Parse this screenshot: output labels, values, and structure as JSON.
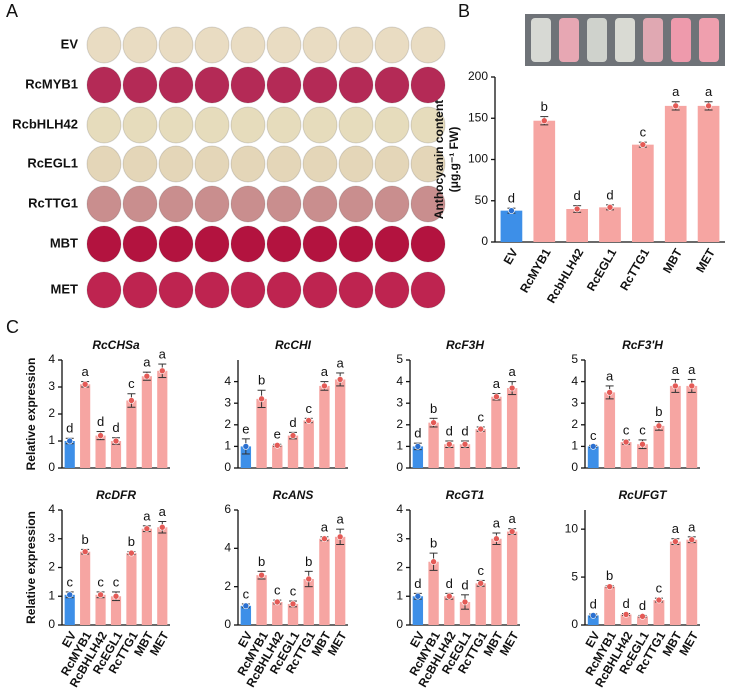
{
  "panel_labels": [
    "A",
    "B",
    "C"
  ],
  "petal_rows": [
    {
      "label": "EV",
      "color": "#e9dcc2"
    },
    {
      "label": "RcMYB1",
      "color": "#b42a56"
    },
    {
      "label": "RcbHLH42",
      "color": "#e6dcbc"
    },
    {
      "label": "RcEGL1",
      "color": "#e4d6b8"
    },
    {
      "label": "RcTTG1",
      "color": "#c98e8e"
    },
    {
      "label": "MBT",
      "color": "#b3133f"
    },
    {
      "label": "MET",
      "color": "#be2450"
    }
  ],
  "chart_data": [
    {
      "type": "bar",
      "y_label": [
        "Anthocyanin content",
        "(μg.g⁻¹ FW)"
      ],
      "categories": [
        "EV",
        "RcMYB1",
        "RcbHLH42",
        "RcEGL1",
        "RcTTG1",
        "MBT",
        "MET"
      ],
      "values": [
        38,
        147,
        40,
        42,
        118,
        165,
        165
      ],
      "errors": [
        3,
        5,
        4,
        3,
        3,
        5,
        5
      ],
      "letters": [
        "d",
        "b",
        "d",
        "d",
        "c",
        "a",
        "a"
      ],
      "colors": [
        "#3d8fe8",
        "#f6a5a2",
        "#f6a5a2",
        "#f6a5a2",
        "#f6a5a2",
        "#f6a5a2",
        "#f6a5a2"
      ],
      "ylim": [
        0,
        200
      ],
      "yticks": [
        0,
        50,
        100,
        150,
        200
      ]
    },
    {
      "type": "bar",
      "title": "RcCHSa",
      "y_label": [
        "Relative expression"
      ],
      "values": [
        1.0,
        3.1,
        1.2,
        1.0,
        2.5,
        3.4,
        3.6
      ],
      "errors": [
        0.1,
        0.1,
        0.15,
        0.12,
        0.25,
        0.15,
        0.25
      ],
      "letters": [
        "d",
        "a",
        "d",
        "d",
        "c",
        "a",
        "a"
      ],
      "colors": [
        "#3d8fe8",
        "#f6a5a2",
        "#f6a5a2",
        "#f6a5a2",
        "#f6a5a2",
        "#f6a5a2",
        "#f6a5a2"
      ],
      "ylim": [
        0,
        4
      ],
      "yticks": [
        0,
        1,
        2,
        3,
        4
      ]
    },
    {
      "type": "bar",
      "title": "RcCHI",
      "values": [
        1.0,
        3.2,
        1.05,
        1.5,
        2.2,
        3.8,
        4.1
      ],
      "errors": [
        0.35,
        0.4,
        0.05,
        0.15,
        0.1,
        0.2,
        0.3
      ],
      "letters": [
        "e",
        "b",
        "e",
        "d",
        "c",
        "a",
        "a"
      ],
      "colors": [
        "#3d8fe8",
        "#f6a5a2",
        "#f6a5a2",
        "#f6a5a2",
        "#f6a5a2",
        "#f6a5a2",
        "#f6a5a2"
      ],
      "ylim": [
        0,
        5
      ],
      "yticks": [
        0,
        1,
        2,
        3,
        4
      ]
    },
    {
      "type": "bar",
      "title": "RcF3H",
      "values": [
        1.0,
        2.1,
        1.1,
        1.1,
        1.8,
        3.3,
        3.7
      ],
      "errors": [
        0.15,
        0.2,
        0.15,
        0.15,
        0.1,
        0.15,
        0.3
      ],
      "letters": [
        "d",
        "b",
        "d",
        "d",
        "c",
        "a",
        "a"
      ],
      "colors": [
        "#3d8fe8",
        "#f6a5a2",
        "#f6a5a2",
        "#f6a5a2",
        "#f6a5a2",
        "#f6a5a2",
        "#f6a5a2"
      ],
      "ylim": [
        0,
        5
      ],
      "yticks": [
        0,
        1,
        2,
        3,
        4,
        5
      ]
    },
    {
      "type": "bar",
      "title": "RcF3'H",
      "values": [
        1.0,
        3.5,
        1.2,
        1.1,
        1.95,
        3.8,
        3.8
      ],
      "errors": [
        0.05,
        0.3,
        0.1,
        0.2,
        0.2,
        0.3,
        0.3
      ],
      "letters": [
        "c",
        "a",
        "c",
        "c",
        "b",
        "a",
        "a"
      ],
      "colors": [
        "#3d8fe8",
        "#f6a5a2",
        "#f6a5a2",
        "#f6a5a2",
        "#f6a5a2",
        "#f6a5a2",
        "#f6a5a2"
      ],
      "ylim": [
        0,
        5
      ],
      "yticks": [
        0,
        1,
        2,
        3,
        4,
        5
      ]
    },
    {
      "type": "bar",
      "title": "RcDFR",
      "y_label": [
        "Relative expression"
      ],
      "categories": [
        "EV",
        "RcMYB1",
        "RcBHLH42",
        "RcEGL1",
        "RcTTG1",
        "MBT",
        "MET"
      ],
      "values": [
        1.05,
        2.55,
        1.05,
        1.0,
        2.5,
        3.35,
        3.4
      ],
      "errors": [
        0.1,
        0.08,
        0.1,
        0.15,
        0.05,
        0.1,
        0.2
      ],
      "letters": [
        "c",
        "b",
        "c",
        "c",
        "b",
        "a",
        "a"
      ],
      "colors": [
        "#3d8fe8",
        "#f6a5a2",
        "#f6a5a2",
        "#f6a5a2",
        "#f6a5a2",
        "#f6a5a2",
        "#f6a5a2"
      ],
      "ylim": [
        0,
        4
      ],
      "yticks": [
        0,
        1,
        2,
        3,
        4
      ]
    },
    {
      "type": "bar",
      "title": "RcANS",
      "categories": [
        "EV",
        "RcMYB1",
        "RcBHLH42",
        "RcEGL1",
        "RcTTG1",
        "MBT",
        "MET"
      ],
      "values": [
        1.0,
        2.6,
        1.2,
        1.1,
        2.4,
        4.5,
        4.6
      ],
      "errors": [
        0.1,
        0.2,
        0.1,
        0.15,
        0.4,
        0.1,
        0.4
      ],
      "letters": [
        "c",
        "b",
        "c",
        "c",
        "b",
        "a",
        "a"
      ],
      "colors": [
        "#3d8fe8",
        "#f6a5a2",
        "#f6a5a2",
        "#f6a5a2",
        "#f6a5a2",
        "#f6a5a2",
        "#f6a5a2"
      ],
      "ylim": [
        0,
        6
      ],
      "yticks": [
        0,
        2,
        4,
        6
      ]
    },
    {
      "type": "bar",
      "title": "RcGT1",
      "categories": [
        "EV",
        "RcMYB1",
        "RcBHLH42",
        "RcEGL1",
        "RcTTG1",
        "MBT",
        "MET"
      ],
      "values": [
        1.0,
        2.2,
        1.0,
        0.8,
        1.45,
        3.0,
        3.25
      ],
      "errors": [
        0.1,
        0.3,
        0.1,
        0.25,
        0.1,
        0.2,
        0.1
      ],
      "letters": [
        "d",
        "b",
        "d",
        "d",
        "c",
        "a",
        "a"
      ],
      "colors": [
        "#3d8fe8",
        "#f6a5a2",
        "#f6a5a2",
        "#f6a5a2",
        "#f6a5a2",
        "#f6a5a2",
        "#f6a5a2"
      ],
      "ylim": [
        0,
        4
      ],
      "yticks": [
        0,
        1,
        2,
        3,
        4
      ]
    },
    {
      "type": "bar",
      "title": "RcUFGT",
      "categories": [
        "EV",
        "RcMYB1",
        "RcBHLH42",
        "RcEGL1",
        "RcTTG1",
        "MBT",
        "MET"
      ],
      "values": [
        1.0,
        4.0,
        1.1,
        0.9,
        2.6,
        8.7,
        8.9
      ],
      "errors": [
        0.15,
        0.1,
        0.1,
        0.1,
        0.2,
        0.3,
        0.3
      ],
      "letters": [
        "d",
        "b",
        "d",
        "d",
        "c",
        "a",
        "a"
      ],
      "colors": [
        "#3d8fe8",
        "#f6a5a2",
        "#f6a5a2",
        "#f6a5a2",
        "#f6a5a2",
        "#f6a5a2",
        "#f6a5a2"
      ],
      "ylim": [
        0,
        12
      ],
      "yticks": [
        0,
        5,
        10
      ]
    }
  ]
}
